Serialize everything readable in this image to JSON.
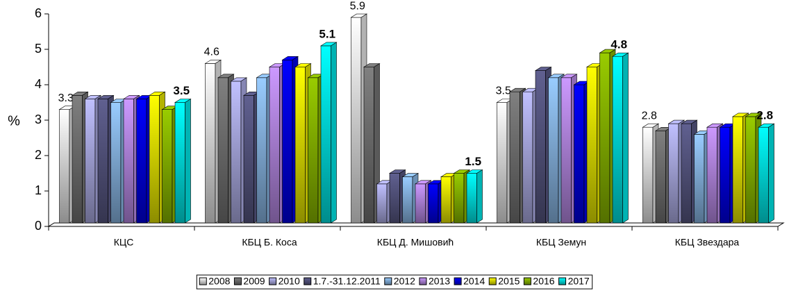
{
  "chart_data": {
    "type": "bar3d",
    "y_label": "%",
    "categories": [
      "КЦС",
      "КБЦ Б. Коса",
      "КБЦ Д. Мишовић",
      "КБЦ Земун",
      "КБЦ Звездара"
    ],
    "series": [
      {
        "name": "2008",
        "color": "#ffffff",
        "values": [
          3.3,
          4.6,
          5.9,
          3.5,
          2.8
        ],
        "show_labels": true
      },
      {
        "name": "2009",
        "color": "#808080",
        "values": [
          3.7,
          4.2,
          4.5,
          3.8,
          2.7
        ]
      },
      {
        "name": "2010",
        "color": "#c0c0ff",
        "values": [
          3.6,
          4.1,
          1.2,
          3.8,
          2.9
        ]
      },
      {
        "name": "1.7.-31.12.2011",
        "color": "#606090",
        "values": [
          3.6,
          3.7,
          1.5,
          4.4,
          2.9
        ]
      },
      {
        "name": "2012",
        "color": "#99ccff",
        "values": [
          3.5,
          4.2,
          1.4,
          4.2,
          2.6
        ]
      },
      {
        "name": "2013",
        "color": "#cc99ff",
        "values": [
          3.6,
          4.5,
          1.2,
          4.2,
          2.8
        ]
      },
      {
        "name": "2014",
        "color": "#0000ff",
        "values": [
          3.6,
          4.7,
          1.2,
          4.0,
          2.8
        ]
      },
      {
        "name": "2015",
        "color": "#ffff00",
        "values": [
          3.7,
          4.5,
          1.4,
          4.5,
          3.1
        ]
      },
      {
        "name": "2016",
        "color": "#99cc00",
        "values": [
          3.3,
          4.2,
          1.5,
          4.9,
          3.1
        ]
      },
      {
        "name": "2017",
        "color": "#00ffff",
        "values": [
          3.5,
          5.1,
          1.5,
          4.8,
          2.8
        ],
        "show_labels": true,
        "bold_labels": true
      }
    ],
    "ylim": [
      0,
      6
    ],
    "yticks": [
      0,
      1,
      2,
      3,
      4,
      5,
      6
    ],
    "legend": "bottom"
  }
}
